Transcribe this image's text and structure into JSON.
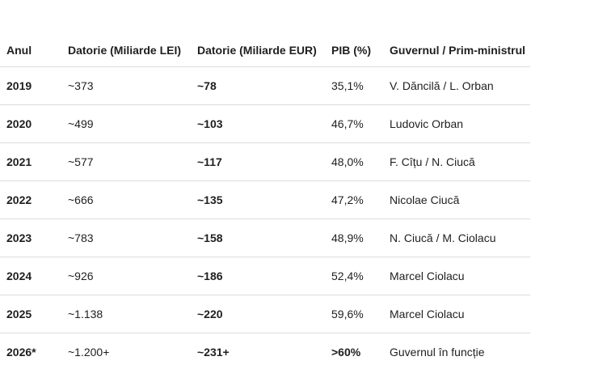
{
  "table": {
    "headers": [
      "Anul",
      "Datorie (Miliarde LEI)",
      "Datorie (Miliarde EUR)",
      "PIB (%)",
      "Guvernul / Prim-ministrul"
    ],
    "rows": [
      {
        "year": "2019",
        "lei": "~373",
        "eur": "~78",
        "pib": "35,1%",
        "gov": "V. Dăncilă / L. Orban"
      },
      {
        "year": "2020",
        "lei": "~499",
        "eur": "~103",
        "pib": "46,7%",
        "gov": "Ludovic Orban"
      },
      {
        "year": "2021",
        "lei": "~577",
        "eur": "~117",
        "pib": "48,0%",
        "gov": "F. Cîțu / N. Ciucă"
      },
      {
        "year": "2022",
        "lei": "~666",
        "eur": "~135",
        "pib": "47,2%",
        "gov": "Nicolae Ciucă"
      },
      {
        "year": "2023",
        "lei": "~783",
        "eur": "~158",
        "pib": "48,9%",
        "gov": "N. Ciucă / M. Ciolacu"
      },
      {
        "year": "2024",
        "lei": "~926",
        "eur": "~186",
        "pib": "52,4%",
        "gov": "Marcel Ciolacu"
      },
      {
        "year": "2025",
        "lei": "~1.138",
        "eur": "~220",
        "pib": "59,6%",
        "gov": "Marcel Ciolacu"
      },
      {
        "year": "2026*",
        "lei": "~1.200+",
        "eur": "~231+",
        "pib": ">60%",
        "gov": "Guvernul în funcție"
      }
    ]
  }
}
